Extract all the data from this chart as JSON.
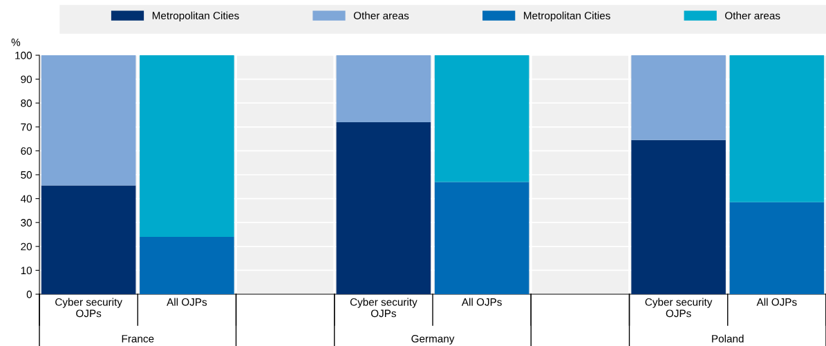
{
  "chart_data": {
    "type": "bar",
    "stacked": true,
    "ylabel": "%",
    "categories": [
      "Cyber security\nOJPs",
      "All OJPs",
      null,
      "Cyber security\nOJPs",
      "All OJPs",
      null,
      "Cyber security\nOJPs",
      "All OJPs"
    ],
    "series": [
      {
        "name": "Metropolitan Cities",
        "color": "#003070",
        "values": [
          45.5,
          null,
          null,
          72,
          null,
          null,
          64.5,
          null
        ]
      },
      {
        "name": "Other areas",
        "color": "#7fa7d8",
        "values": [
          54.5,
          null,
          null,
          28,
          null,
          null,
          35.5,
          null
        ]
      },
      {
        "name": "Metropolitan Cities",
        "color": "#006bb6",
        "values": [
          null,
          24,
          null,
          null,
          47,
          null,
          null,
          38.5
        ]
      },
      {
        "name": "Other areas",
        "color": "#00aacc",
        "values": [
          null,
          76,
          null,
          null,
          53,
          null,
          null,
          61.5
        ]
      }
    ],
    "ylim": [
      0,
      100
    ],
    "yticks": [
      0,
      10,
      20,
      30,
      40,
      50,
      60,
      70,
      80,
      90,
      100
    ],
    "grid": "y",
    "legend": "top",
    "annotations": [
      "France",
      "Germany",
      "Poland"
    ]
  }
}
